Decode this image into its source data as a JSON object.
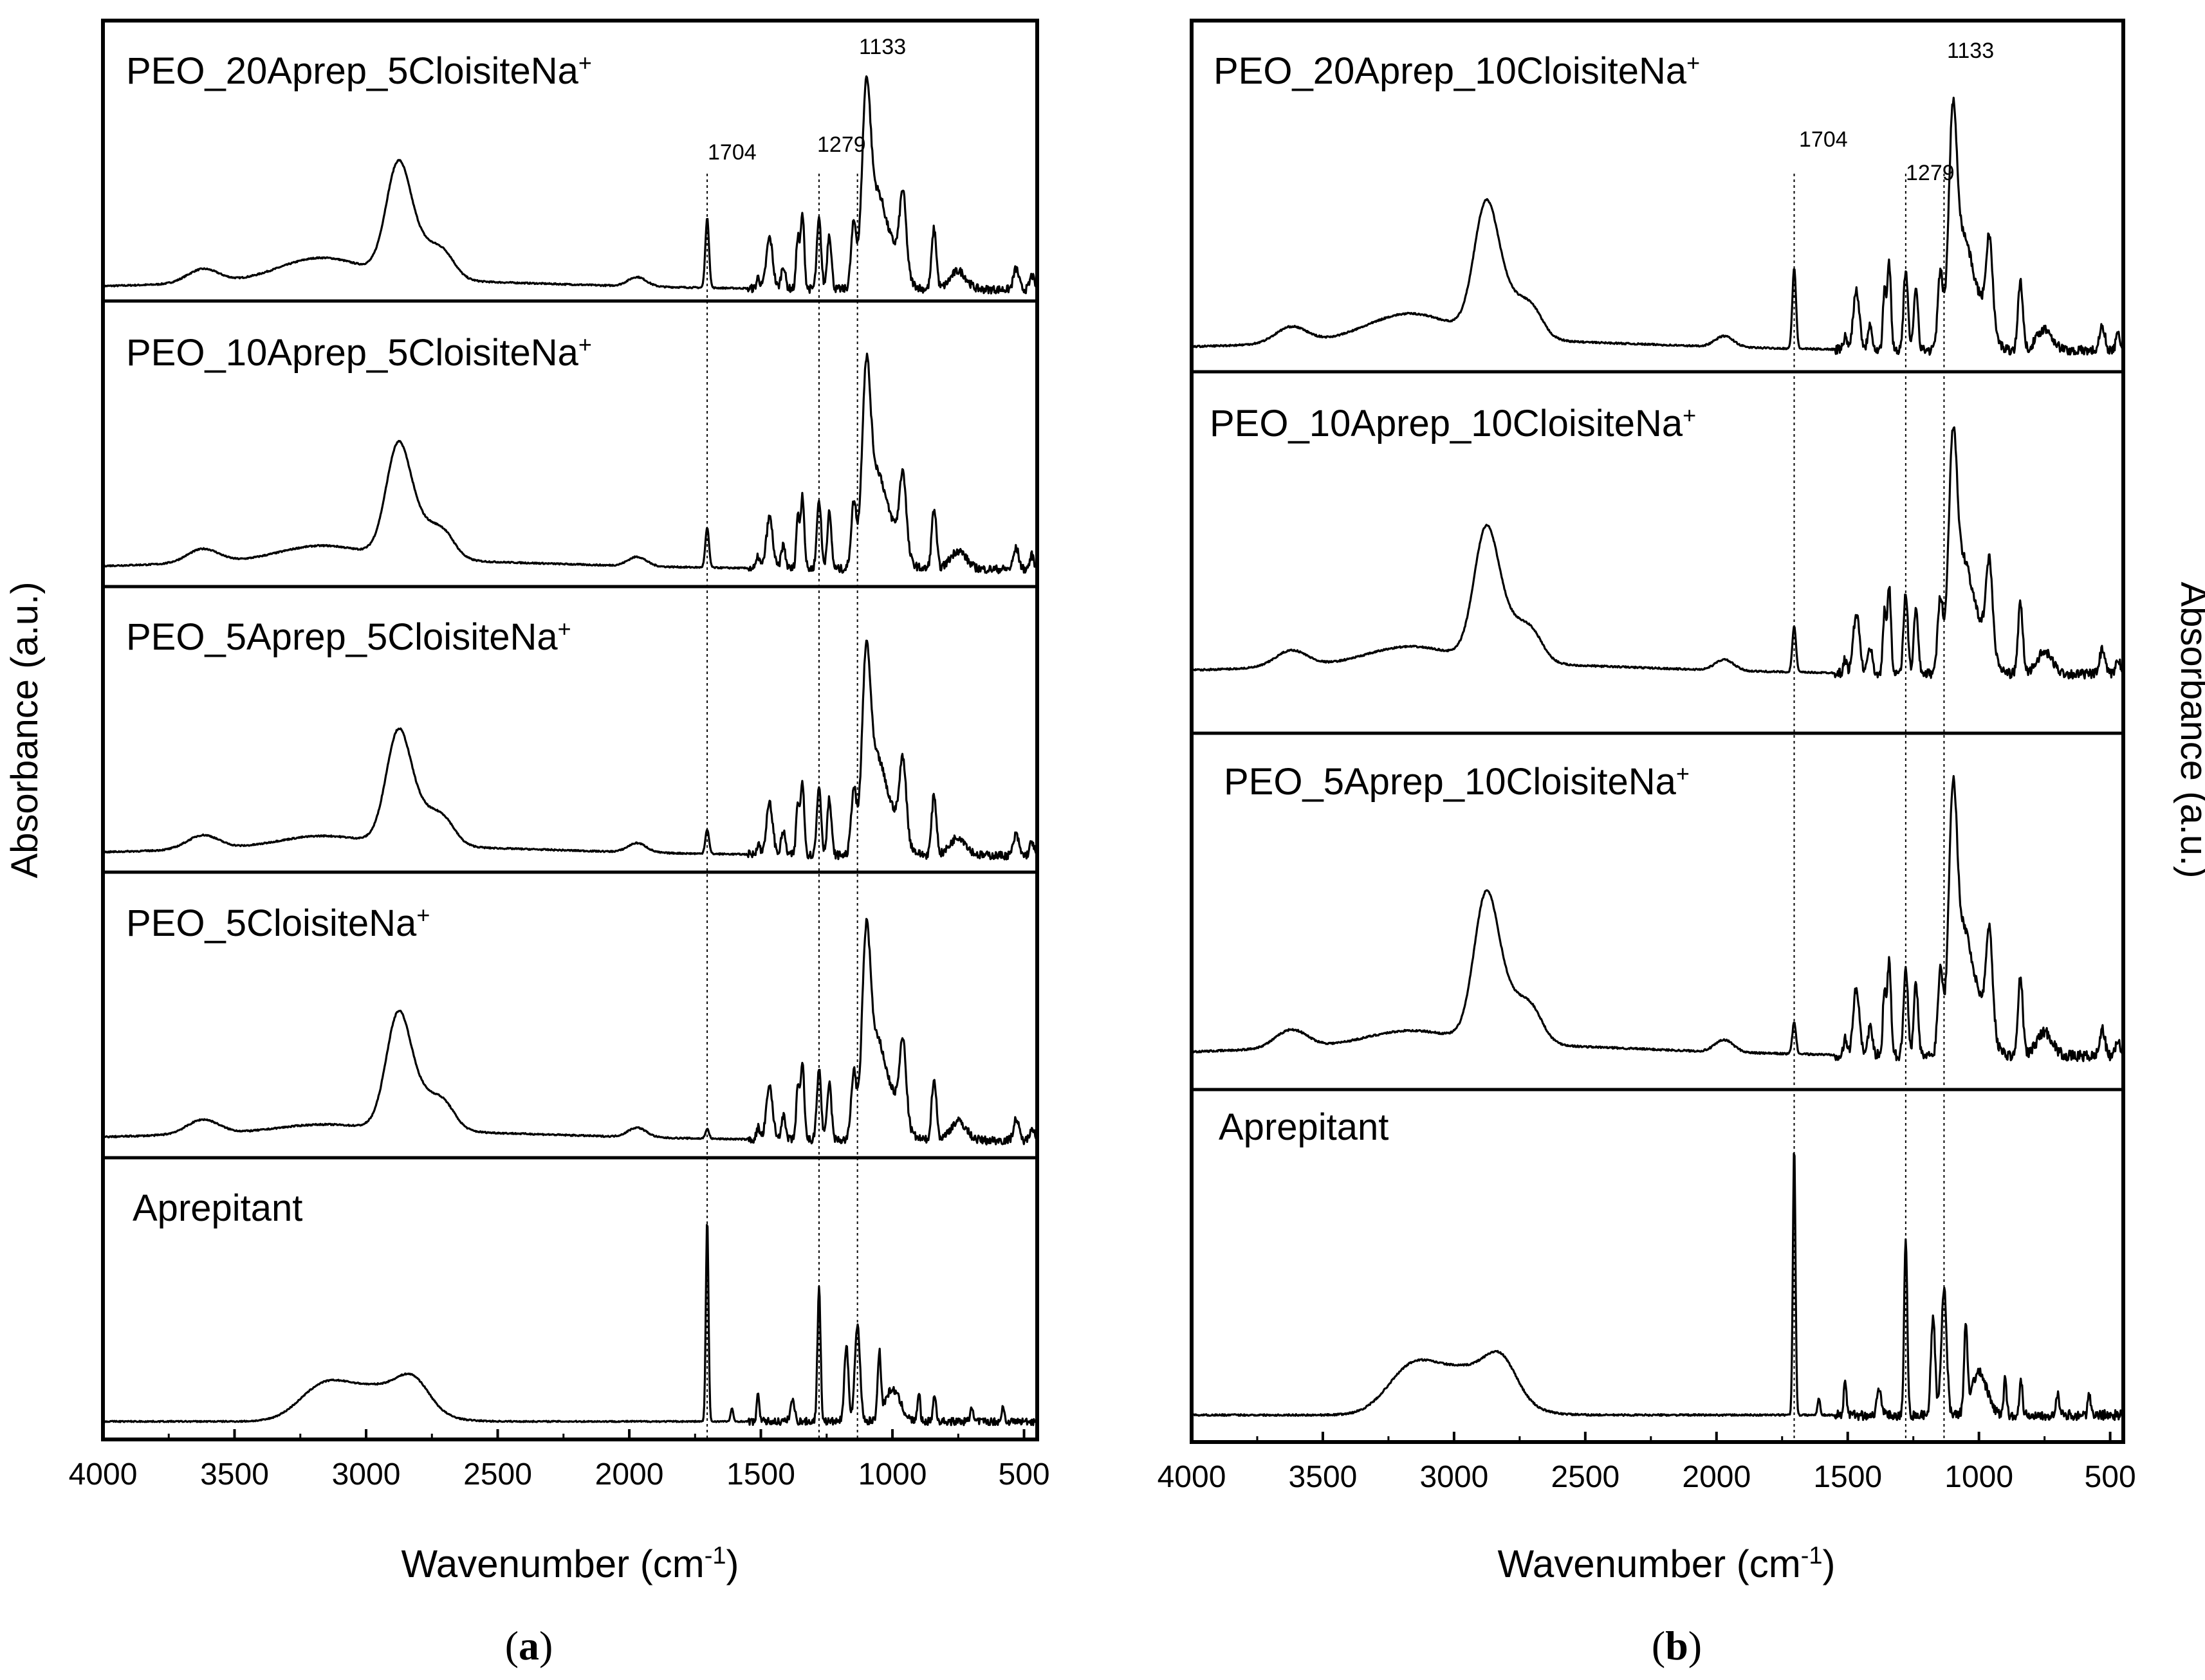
{
  "figure": {
    "color_line": "#000000",
    "color_background": "#ffffff",
    "panels": [
      {
        "id": "a",
        "caption_open": "(",
        "caption_letter": "a",
        "caption_close": ")",
        "xlabel_main": "Wavenumber (cm",
        "xlabel_sup": "-1",
        "xlabel_close": ")",
        "ylabel": "Absorbance (a.u.)",
        "xlim": [
          4000,
          450
        ],
        "xticks": [
          {
            "value": 4000,
            "label": "4000"
          },
          {
            "value": 3500,
            "label": "3500"
          },
          {
            "value": 3000,
            "label": "3000"
          },
          {
            "value": 2500,
            "label": "2500"
          },
          {
            "value": 2000,
            "label": "2000"
          },
          {
            "value": 1500,
            "label": "1500"
          },
          {
            "value": 1000,
            "label": "1000"
          },
          {
            "value": 500,
            "label": "500"
          }
        ],
        "reference_lines": [
          {
            "value": 1704,
            "label": "1704"
          },
          {
            "value": 1279,
            "label": "1279"
          },
          {
            "value": 1133,
            "label": "1133"
          }
        ]
      },
      {
        "id": "b",
        "caption_open": "(",
        "caption_letter": "b",
        "caption_close": ")",
        "xlabel_main": "Wavenumber (cm",
        "xlabel_sup": "-1",
        "xlabel_close": ")",
        "ylabel": "Absorbance (a.u.)",
        "xlim": [
          4000,
          450
        ],
        "xticks": [
          {
            "value": 4000,
            "label": "4000"
          },
          {
            "value": 3500,
            "label": "3500"
          },
          {
            "value": 3000,
            "label": "3000"
          },
          {
            "value": 2500,
            "label": "2500"
          },
          {
            "value": 2000,
            "label": "2000"
          },
          {
            "value": 1500,
            "label": "1500"
          },
          {
            "value": 1000,
            "label": "1000"
          },
          {
            "value": 500,
            "label": "500"
          }
        ],
        "reference_lines": [
          {
            "value": 1704,
            "label": "1704"
          },
          {
            "value": 1279,
            "label": "1279"
          },
          {
            "value": 1133,
            "label": "1133"
          }
        ]
      }
    ]
  },
  "chart_data": [
    {
      "type": "line",
      "panel": "a",
      "title": "",
      "xlabel": "Wavenumber (cm-1)",
      "ylabel": "Absorbance (a.u.)",
      "xlim": [
        4000,
        450
      ],
      "ylim_per_stack": [
        0,
        1
      ],
      "series": [
        {
          "name": "PEO_20Aprep_5CloisiteNa+",
          "label_main": "PEO_20Aprep_5CloisiteNa",
          "label_sup": "+",
          "family": "composite",
          "aprep_level": 20,
          "x": [
            4000,
            3620,
            3170,
            2950,
            2880,
            2800,
            2500,
            1970,
            1704,
            1467,
            1342,
            1279,
            1240,
            1133,
            1100,
            1060,
            960,
            842,
            530,
            450
          ],
          "y": [
            0.0,
            0.06,
            0.09,
            0.22,
            0.45,
            0.3,
            0.08,
            0.07,
            0.33,
            0.22,
            0.33,
            0.33,
            0.25,
            0.55,
            0.9,
            0.55,
            0.45,
            0.25,
            0.05,
            0.0
          ]
        },
        {
          "name": "PEO_10Aprep_5CloisiteNa+",
          "label_main": "PEO_10Aprep_5CloisiteNa",
          "label_sup": "+",
          "family": "composite",
          "aprep_level": 10,
          "x": [
            4000,
            3620,
            2950,
            2880,
            2800,
            2500,
            1970,
            1704,
            1467,
            1342,
            1279,
            1240,
            1133,
            1100,
            1060,
            960,
            842,
            530,
            450
          ],
          "y": [
            0.0,
            0.04,
            0.22,
            0.47,
            0.3,
            0.08,
            0.06,
            0.22,
            0.26,
            0.36,
            0.34,
            0.26,
            0.55,
            0.92,
            0.55,
            0.46,
            0.26,
            0.1,
            0.0
          ]
        },
        {
          "name": "PEO_5Aprep_5CloisiteNa+",
          "label_main": "PEO_5Aprep_5CloisiteNa",
          "label_sup": "+",
          "family": "composite",
          "aprep_level": 5,
          "x": [
            4000,
            3620,
            2950,
            2880,
            2800,
            2500,
            1970,
            1704,
            1467,
            1342,
            1279,
            1240,
            1133,
            1100,
            1060,
            960,
            842,
            530,
            450
          ],
          "y": [
            0.0,
            0.04,
            0.25,
            0.55,
            0.35,
            0.08,
            0.07,
            0.12,
            0.3,
            0.4,
            0.36,
            0.28,
            0.55,
            1.0,
            0.6,
            0.5,
            0.3,
            0.1,
            0.0
          ]
        },
        {
          "name": "PEO_5CloisiteNa+",
          "label_main": "PEO_5CloisiteNa",
          "label_sup": "+",
          "family": "composite",
          "aprep_level": 0,
          "x": [
            4000,
            3620,
            2950,
            2880,
            2800,
            2500,
            1970,
            1704,
            1467,
            1342,
            1279,
            1240,
            1133,
            1100,
            1060,
            960,
            842,
            530,
            450
          ],
          "y": [
            0.0,
            0.04,
            0.25,
            0.55,
            0.35,
            0.08,
            0.08,
            0.02,
            0.3,
            0.42,
            0.36,
            0.28,
            0.5,
            1.0,
            0.6,
            0.52,
            0.32,
            0.1,
            0.0
          ]
        },
        {
          "name": "Aprepitant",
          "label_main": "Aprepitant",
          "label_sup": "",
          "family": "aprepitant",
          "x": [
            4000,
            3300,
            3170,
            2970,
            2800,
            2600,
            1720,
            1704,
            1690,
            1510,
            1279,
            1200,
            1133,
            1050,
            900,
            700,
            450
          ],
          "y": [
            0.0,
            0.03,
            0.18,
            0.2,
            0.16,
            0.03,
            0.03,
            1.0,
            0.03,
            0.15,
            0.72,
            0.4,
            0.55,
            0.4,
            0.18,
            0.1,
            0.0
          ]
        }
      ],
      "reference_lines": [
        1704,
        1279,
        1133
      ]
    },
    {
      "type": "line",
      "panel": "b",
      "title": "",
      "xlabel": "Wavenumber (cm-1)",
      "ylabel": "Absorbance (a.u.)",
      "xlim": [
        4000,
        450
      ],
      "ylim_per_stack": [
        0,
        1
      ],
      "series": [
        {
          "name": "PEO_20Aprep_10CloisiteNa+",
          "label_main": "PEO_20Aprep_10CloisiteNa",
          "label_sup": "+",
          "family": "composite",
          "aprep_level": 20,
          "x": [
            4000,
            3620,
            3170,
            2950,
            2880,
            2800,
            2500,
            1970,
            1704,
            1467,
            1342,
            1279,
            1240,
            1133,
            1100,
            1060,
            960,
            842,
            530,
            450
          ],
          "y": [
            0.0,
            0.08,
            0.13,
            0.25,
            0.42,
            0.3,
            0.1,
            0.12,
            0.3,
            0.25,
            0.45,
            0.4,
            0.3,
            0.55,
            0.95,
            0.55,
            0.45,
            0.3,
            0.1,
            0.0
          ]
        },
        {
          "name": "PEO_10Aprep_10CloisiteNa+",
          "label_main": "PEO_10Aprep_10CloisiteNa",
          "label_sup": "+",
          "family": "composite",
          "aprep_level": 10,
          "x": [
            4000,
            3620,
            2950,
            2880,
            2800,
            2500,
            1970,
            1704,
            1467,
            1342,
            1279,
            1240,
            1133,
            1100,
            1060,
            960,
            842,
            530,
            450
          ],
          "y": [
            0.0,
            0.08,
            0.22,
            0.42,
            0.3,
            0.08,
            0.1,
            0.26,
            0.3,
            0.45,
            0.4,
            0.3,
            0.55,
            1.0,
            0.58,
            0.48,
            0.32,
            0.12,
            0.0
          ]
        },
        {
          "name": "PEO_5Aprep_10CloisiteNa+",
          "label_main": "PEO_5Aprep_10CloisiteNa",
          "label_sup": "+",
          "family": "composite",
          "aprep_level": 5,
          "x": [
            4000,
            3620,
            2950,
            2880,
            2800,
            2500,
            1970,
            1704,
            1467,
            1342,
            1279,
            1240,
            1133,
            1100,
            1060,
            960,
            842,
            530,
            450
          ],
          "y": [
            0.0,
            0.06,
            0.3,
            0.58,
            0.36,
            0.08,
            0.1,
            0.1,
            0.35,
            0.4,
            0.38,
            0.3,
            0.55,
            1.0,
            0.6,
            0.5,
            0.35,
            0.12,
            0.0
          ]
        },
        {
          "name": "Aprepitant",
          "label_main": "Aprepitant",
          "label_sup": "",
          "family": "aprepitant",
          "x": [
            4000,
            3300,
            3170,
            2970,
            2800,
            2600,
            1720,
            1704,
            1690,
            1510,
            1279,
            1200,
            1133,
            1050,
            900,
            700,
            450
          ],
          "y": [
            0.0,
            0.03,
            0.2,
            0.23,
            0.18,
            0.03,
            0.03,
            1.0,
            0.03,
            0.15,
            0.6,
            0.4,
            0.58,
            0.4,
            0.18,
            0.1,
            0.0
          ]
        }
      ],
      "reference_lines": [
        1704,
        1279,
        1133
      ]
    }
  ]
}
